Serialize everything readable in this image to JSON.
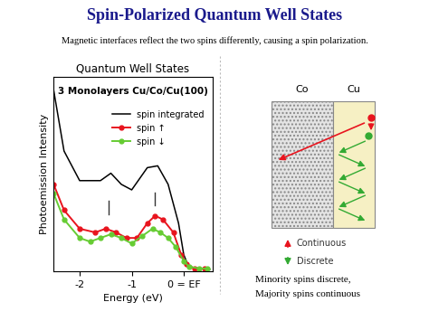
{
  "header": {
    "title": "Spin-Polarized Quantum Well States",
    "subtitle": "Magnetic interfaces reflect the two spins differently, causing a spin polarization."
  },
  "chart_data": {
    "type": "line",
    "title": "Quantum Well States",
    "annotation": "3 Monolayers Cu/Co/Cu(100)",
    "x_label": "Energy (eV)",
    "y_label": "Photoemission Intensity",
    "xlim": [
      -2.5,
      0.55
    ],
    "ylim": [
      0,
      10.5
    ],
    "xticks": [
      -2,
      -1,
      {
        "value": 0,
        "label": "0 = EF"
      }
    ],
    "tick_labels": "x",
    "legend": "upper right",
    "peak_markers": [
      -1.45,
      -0.55
    ],
    "series": [
      {
        "name": "spin integrated",
        "color": "#000000",
        "marker": "none",
        "x": [
          -2.5,
          -2.3,
          -2.0,
          -1.6,
          -1.4,
          -1.2,
          -1.0,
          -0.7,
          -0.5,
          -0.3,
          -0.1,
          0.0,
          0.1,
          0.3,
          0.5
        ],
        "values": [
          9.8,
          6.5,
          4.9,
          4.9,
          5.3,
          4.7,
          4.4,
          5.6,
          5.7,
          4.7,
          2.6,
          0.9,
          0.2,
          0.15,
          0.1
        ]
      },
      {
        "name": "spin ↑",
        "color": "#e8141e",
        "marker": "o",
        "x": [
          -2.5,
          -2.3,
          -2.0,
          -1.7,
          -1.5,
          -1.3,
          -1.1,
          -0.9,
          -0.7,
          -0.55,
          -0.4,
          -0.2,
          -0.05,
          0.05,
          0.2,
          0.4
        ],
        "values": [
          4.7,
          3.3,
          2.3,
          2.1,
          2.3,
          2.1,
          1.8,
          1.8,
          2.6,
          3.0,
          2.8,
          2.1,
          0.9,
          0.4,
          0.15,
          0.15
        ]
      },
      {
        "name": "spin ↓",
        "color": "#66cc33",
        "marker": "o",
        "x": [
          -2.5,
          -2.3,
          -2.0,
          -1.8,
          -1.6,
          -1.4,
          -1.2,
          -1.0,
          -0.8,
          -0.6,
          -0.45,
          -0.3,
          -0.15,
          0.0,
          0.1,
          0.3,
          0.45
        ],
        "values": [
          4.2,
          2.8,
          1.8,
          1.6,
          1.8,
          2.0,
          1.8,
          1.5,
          1.9,
          2.3,
          2.1,
          1.8,
          1.3,
          0.55,
          0.25,
          0.15,
          0.15
        ]
      }
    ]
  },
  "diagram": {
    "layers": [
      "Co",
      "Cu"
    ],
    "legend": [
      {
        "label": "Continuous",
        "color": "#e8141e"
      },
      {
        "label": "Discrete",
        "color": "#33aa33"
      }
    ],
    "caption": [
      "Minority spins discrete,",
      "Majority spins continuous"
    ]
  }
}
